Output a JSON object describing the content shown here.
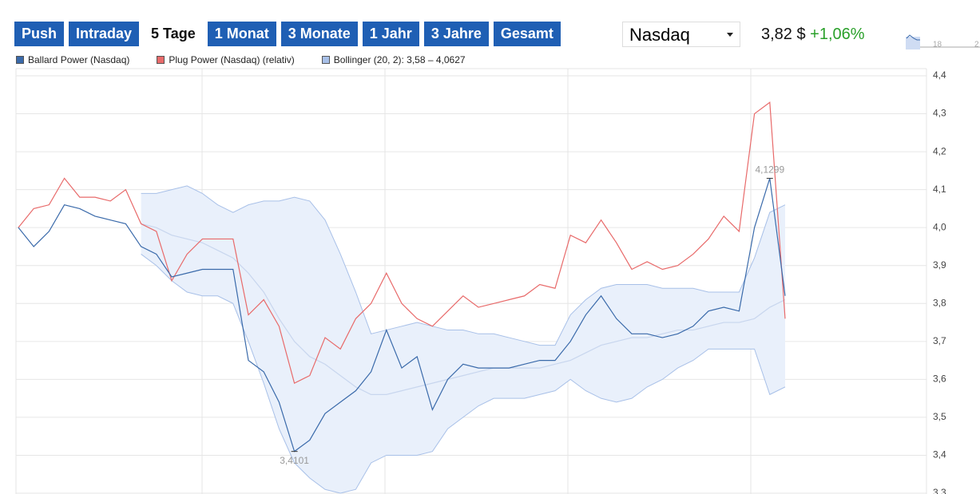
{
  "ui": {
    "tabs": [
      "Push",
      "Intraday",
      "5 Tage",
      "1 Monat",
      "3 Monate",
      "1 Jahr",
      "3 Jahre",
      "Gesamt"
    ],
    "active_tab": 2,
    "exchange": "Nasdaq",
    "price": "3,82 $",
    "change": "+1,06%",
    "mini_chart_labels": [
      "18",
      "2"
    ]
  },
  "chart_data": {
    "type": "line",
    "categories": [
      null,
      null,
      null,
      null,
      null,
      null,
      null,
      null,
      null,
      null,
      null,
      null,
      null,
      null,
      null,
      null,
      null,
      null,
      null,
      null,
      null,
      null,
      null,
      null,
      null,
      null,
      null,
      null,
      null,
      null,
      null,
      null,
      null,
      null,
      null,
      null,
      null,
      null,
      null,
      null,
      null,
      null,
      null,
      null,
      null,
      null,
      null,
      null,
      null,
      null,
      null
    ],
    "ylim": [
      3.3,
      4.4
    ],
    "yticks": [
      {
        "value": 3.3,
        "label": "3,3"
      },
      {
        "value": 3.4,
        "label": "3,4"
      },
      {
        "value": 3.5,
        "label": "3,5"
      },
      {
        "value": 3.6,
        "label": "3,6"
      },
      {
        "value": 3.7,
        "label": "3,7"
      },
      {
        "value": 3.8,
        "label": "3,8"
      },
      {
        "value": 3.9,
        "label": "3,9"
      },
      {
        "value": 4.0,
        "label": "4,0"
      },
      {
        "value": 4.1,
        "label": "4,1"
      },
      {
        "value": 4.2,
        "label": "4,2"
      },
      {
        "value": 4.3,
        "label": "4,3"
      },
      {
        "value": 4.4,
        "label": "4,4"
      }
    ],
    "grid": true,
    "series": [
      {
        "name": "Ballard Power (Nasdaq)",
        "color": "#3a6aaa",
        "values": [
          4.0,
          3.95,
          3.99,
          4.06,
          4.05,
          4.03,
          4.02,
          4.01,
          3.95,
          3.93,
          3.87,
          3.88,
          3.89,
          3.89,
          3.89,
          3.65,
          3.62,
          3.54,
          3.4101,
          3.44,
          3.51,
          3.54,
          3.57,
          3.62,
          3.73,
          3.63,
          3.66,
          3.52,
          3.6,
          3.64,
          3.63,
          3.63,
          3.63,
          3.64,
          3.65,
          3.65,
          3.7,
          3.77,
          3.82,
          3.76,
          3.72,
          3.72,
          3.71,
          3.72,
          3.74,
          3.78,
          3.79,
          3.78,
          4.0,
          4.1299,
          3.82
        ],
        "value_labels": [
          null,
          null,
          null,
          null,
          null,
          null,
          null,
          null,
          null,
          null,
          null,
          null,
          null,
          null,
          null,
          null,
          null,
          null,
          "3,4101",
          null,
          null,
          null,
          null,
          null,
          null,
          null,
          null,
          null,
          null,
          null,
          null,
          null,
          null,
          null,
          null,
          null,
          null,
          null,
          null,
          null,
          null,
          null,
          null,
          null,
          null,
          null,
          null,
          null,
          null,
          "4,1299",
          null
        ]
      },
      {
        "name": "Plug Power (Nasdaq) (relativ)",
        "color": "#e86a6a",
        "values": [
          4.0,
          4.05,
          4.06,
          4.13,
          4.08,
          4.08,
          4.07,
          4.1,
          4.01,
          3.99,
          3.86,
          3.93,
          3.97,
          3.97,
          3.97,
          3.77,
          3.81,
          3.74,
          3.59,
          3.61,
          3.71,
          3.68,
          3.76,
          3.8,
          3.88,
          3.8,
          3.76,
          3.74,
          3.78,
          3.82,
          3.79,
          3.8,
          3.81,
          3.82,
          3.85,
          3.84,
          3.98,
          3.96,
          4.02,
          3.96,
          3.89,
          3.91,
          3.89,
          3.9,
          3.93,
          3.97,
          4.03,
          3.99,
          4.3,
          4.33,
          3.76
        ]
      }
    ],
    "band": {
      "name": "Bollinger (20, 2): 3,58 – 4,0627",
      "color": "#a8c0e8",
      "fill": "#e9f0fb",
      "upper": [
        null,
        null,
        null,
        null,
        null,
        null,
        null,
        null,
        4.09,
        4.09,
        4.1,
        4.11,
        4.09,
        4.06,
        4.04,
        4.06,
        4.07,
        4.07,
        4.08,
        4.07,
        4.02,
        3.93,
        3.83,
        3.72,
        3.73,
        3.74,
        3.75,
        3.74,
        3.73,
        3.73,
        3.72,
        3.72,
        3.71,
        3.7,
        3.69,
        3.69,
        3.77,
        3.81,
        3.84,
        3.85,
        3.85,
        3.85,
        3.84,
        3.84,
        3.84,
        3.83,
        3.83,
        3.83,
        3.92,
        4.04,
        4.06
      ],
      "middle": [
        null,
        null,
        null,
        null,
        null,
        null,
        null,
        null,
        4.01,
        4.0,
        3.98,
        3.97,
        3.96,
        3.94,
        3.92,
        3.88,
        3.83,
        3.76,
        3.7,
        3.66,
        3.64,
        3.61,
        3.58,
        3.56,
        3.56,
        3.57,
        3.58,
        3.59,
        3.6,
        3.61,
        3.62,
        3.63,
        3.63,
        3.63,
        3.63,
        3.64,
        3.65,
        3.67,
        3.69,
        3.7,
        3.71,
        3.71,
        3.72,
        3.73,
        3.73,
        3.74,
        3.75,
        3.75,
        3.76,
        3.79,
        3.81
      ],
      "lower": [
        null,
        null,
        null,
        null,
        null,
        null,
        null,
        null,
        3.93,
        3.9,
        3.86,
        3.83,
        3.82,
        3.82,
        3.8,
        3.7,
        3.59,
        3.47,
        3.38,
        3.34,
        3.31,
        3.3,
        3.31,
        3.38,
        3.4,
        3.4,
        3.4,
        3.41,
        3.47,
        3.5,
        3.53,
        3.55,
        3.55,
        3.55,
        3.56,
        3.57,
        3.6,
        3.57,
        3.55,
        3.54,
        3.55,
        3.58,
        3.6,
        3.63,
        3.65,
        3.68,
        3.68,
        3.68,
        3.68,
        3.56,
        3.58
      ]
    }
  }
}
